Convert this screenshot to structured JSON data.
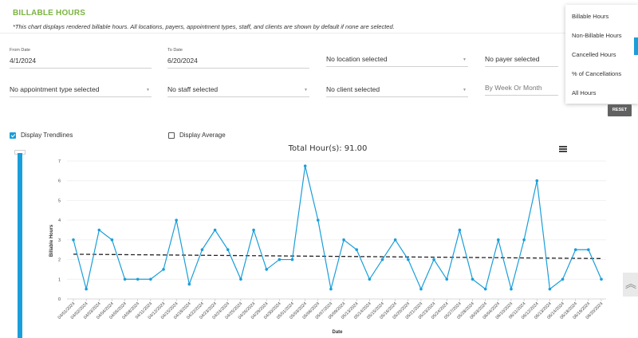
{
  "header": {
    "title": "BILLABLE HOURS",
    "subtitle": "*This chart displays rendered billable hours. All locations, payers, appointment types, staff, and clients are shown by default if none are selected."
  },
  "filters": {
    "from_date": {
      "label": "From Date",
      "value": "4/1/2024"
    },
    "to_date": {
      "label": "To Date",
      "value": "6/20/2024"
    },
    "location": "No location selected",
    "payer": "No payer selected",
    "appointment_type": "No appointment type selected",
    "staff": "No staff selected",
    "client": "No client selected",
    "grouping_placeholder": "By Week Or Month",
    "reset_label": "RESET"
  },
  "report_menu": {
    "items": [
      "Billable Hours",
      "Non-Billable Hours",
      "Cancelled Hours",
      "% of Cancellations",
      "All Hours"
    ]
  },
  "options": {
    "trendlines": {
      "label": "Display Trendlines",
      "checked": true
    },
    "average": {
      "label": "Display Average",
      "checked": false
    }
  },
  "icons": {
    "menu": "hamburger-icon",
    "scroll_top": "double-chevron-up-icon"
  },
  "colors": {
    "accent": "#1a9ed9",
    "title_green": "#7cb342",
    "trend": "#222222"
  },
  "chart_data": {
    "type": "line",
    "title": "Total Hour(s): 91.00",
    "xlabel": "Date",
    "ylabel": "Billable Hours",
    "ylim": [
      0,
      7
    ],
    "yticks": [
      0,
      1,
      2,
      3,
      4,
      5,
      6,
      7
    ],
    "grid": true,
    "categories": [
      "04/01/2024",
      "04/02/2024",
      "04/03/2024",
      "04/04/2024",
      "04/05/2024",
      "04/08/2024",
      "04/11/2024",
      "04/12/2024",
      "04/15/2024",
      "04/18/2024",
      "04/22/2024",
      "04/23/2024",
      "04/24/2024",
      "04/25/2024",
      "04/26/2024",
      "04/29/2024",
      "04/30/2024",
      "05/01/2024",
      "05/03/2024",
      "05/06/2024",
      "05/07/2024",
      "05/09/2024",
      "05/13/2024",
      "05/14/2024",
      "05/15/2024",
      "05/16/2024",
      "05/20/2024",
      "05/21/2024",
      "05/23/2024",
      "05/24/2024",
      "05/27/2024",
      "05/28/2024",
      "06/03/2024",
      "06/04/2024",
      "06/10/2024",
      "06/11/2024",
      "06/12/2024",
      "06/13/2024",
      "06/14/2024",
      "06/18/2024",
      "06/19/2024",
      "06/20/2024"
    ],
    "series": [
      {
        "values": [
          3,
          0.5,
          3.5,
          3,
          1,
          1,
          1,
          1.5,
          4,
          0.75,
          2.5,
          3.5,
          2.5,
          1,
          3.5,
          1.5,
          2,
          2,
          6.75,
          4,
          0.5,
          3,
          2.5,
          1,
          2,
          3,
          2,
          0.5,
          2,
          1,
          3.5,
          1,
          0.5,
          3,
          0.5,
          3,
          6,
          0.5,
          1,
          2.5,
          2.5,
          1
        ]
      }
    ],
    "trendline": {
      "start": 2.27,
      "end": 2.05
    }
  }
}
